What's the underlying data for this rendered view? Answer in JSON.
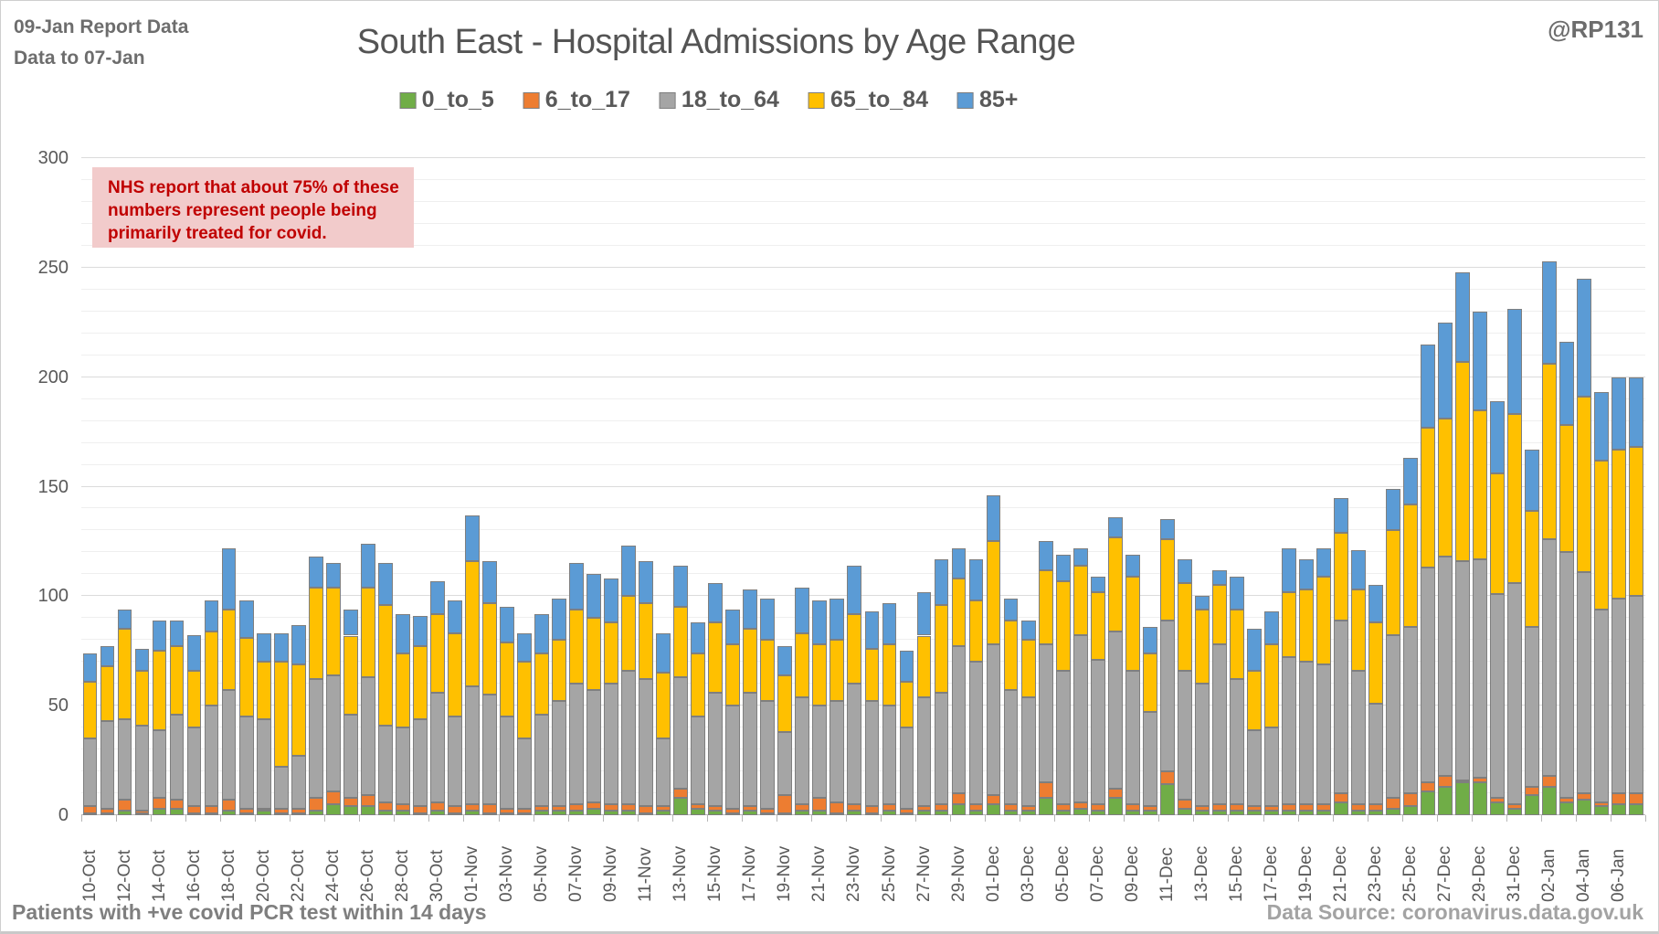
{
  "window": {
    "report_note_line1": "09-Jan Report Data",
    "report_note_line2": "Data to 07-Jan",
    "watermark": "@RP131"
  },
  "title": "South East - Hospital Admissions by Age Range",
  "annotation": {
    "text": "NHS report that about 75% of these\nnumbers represent people being\nprimarily treated for covid.",
    "bg_color": "#F2CBCB",
    "text_color": "#C00000"
  },
  "footer": {
    "left": "Patients with  +ve covid PCR test within 14 days",
    "right": "Data Source: coronavirus.data.gov.uk"
  },
  "colors": {
    "axis_text": "#595959",
    "minor_gridline": "#EFEFEF",
    "major_gridline": "#DBDBDB",
    "bar_border": "#7F7F7F"
  },
  "chart_data": {
    "type": "bar",
    "stacked": true,
    "title": "South East - Hospital Admissions by Age Range",
    "xlabel": "",
    "ylabel": "",
    "ylim": [
      0,
      300
    ],
    "ytick_step": 50,
    "minor_grid_step": 10,
    "yticks": [
      0,
      50,
      100,
      150,
      200,
      250,
      300
    ],
    "grid": "horizontal, minor every 10 (faint), major every 50",
    "legend_position": "top",
    "x_label_every": 2,
    "categories": [
      "10-Oct",
      "11-Oct",
      "12-Oct",
      "13-Oct",
      "14-Oct",
      "15-Oct",
      "16-Oct",
      "17-Oct",
      "18-Oct",
      "19-Oct",
      "20-Oct",
      "21-Oct",
      "22-Oct",
      "23-Oct",
      "24-Oct",
      "25-Oct",
      "26-Oct",
      "27-Oct",
      "28-Oct",
      "29-Oct",
      "30-Oct",
      "31-Oct",
      "01-Nov",
      "02-Nov",
      "03-Nov",
      "04-Nov",
      "05-Nov",
      "06-Nov",
      "07-Nov",
      "08-Nov",
      "09-Nov",
      "10-Nov",
      "11-Nov",
      "12-Nov",
      "13-Nov",
      "14-Nov",
      "15-Nov",
      "16-Nov",
      "17-Nov",
      "18-Nov",
      "19-Nov",
      "20-Nov",
      "21-Nov",
      "22-Nov",
      "23-Nov",
      "24-Nov",
      "25-Nov",
      "26-Nov",
      "27-Nov",
      "28-Nov",
      "29-Nov",
      "30-Nov",
      "01-Dec",
      "02-Dec",
      "03-Dec",
      "04-Dec",
      "05-Dec",
      "06-Dec",
      "07-Dec",
      "08-Dec",
      "09-Dec",
      "10-Dec",
      "11-Dec",
      "12-Dec",
      "13-Dec",
      "14-Dec",
      "15-Dec",
      "16-Dec",
      "17-Dec",
      "18-Dec",
      "19-Dec",
      "20-Dec",
      "21-Dec",
      "22-Dec",
      "23-Dec",
      "24-Dec",
      "25-Dec",
      "26-Dec",
      "27-Dec",
      "28-Dec",
      "29-Dec",
      "30-Dec",
      "31-Dec",
      "01-Jan",
      "02-Jan",
      "03-Jan",
      "04-Jan",
      "05-Jan",
      "06-Jan",
      "07-Jan"
    ],
    "series": [
      {
        "name": "0_to_5",
        "color": "#70AD47",
        "values": [
          1,
          1,
          2,
          1,
          3,
          3,
          1,
          1,
          2,
          1,
          2,
          1,
          1,
          2,
          5,
          4,
          4,
          2,
          2,
          1,
          2,
          1,
          2,
          1,
          1,
          1,
          2,
          2,
          2,
          3,
          2,
          2,
          1,
          2,
          8,
          3,
          2,
          1,
          2,
          1,
          1,
          2,
          2,
          1,
          2,
          1,
          2,
          1,
          2,
          2,
          5,
          2,
          5,
          2,
          2,
          8,
          2,
          3,
          2,
          8,
          2,
          2,
          14,
          3,
          2,
          2,
          2,
          2,
          2,
          2,
          2,
          2,
          6,
          2,
          2,
          3,
          4,
          11,
          13,
          15,
          15,
          6,
          3,
          9,
          13,
          6,
          7,
          4,
          5,
          5
        ]
      },
      {
        "name": "6_to_17",
        "color": "#ED7D31",
        "values": [
          3,
          2,
          5,
          1,
          5,
          4,
          3,
          3,
          5,
          2,
          1,
          2,
          2,
          6,
          6,
          4,
          5,
          4,
          3,
          3,
          4,
          3,
          3,
          4,
          2,
          2,
          2,
          2,
          3,
          3,
          3,
          3,
          3,
          2,
          4,
          2,
          2,
          2,
          2,
          2,
          8,
          3,
          6,
          5,
          3,
          3,
          3,
          2,
          2,
          3,
          5,
          3,
          4,
          3,
          2,
          7,
          3,
          3,
          3,
          4,
          3,
          2,
          6,
          4,
          2,
          3,
          3,
          2,
          2,
          3,
          3,
          3,
          4,
          3,
          3,
          5,
          6,
          4,
          5,
          1,
          2,
          2,
          2,
          4,
          5,
          2,
          3,
          2,
          5,
          5
        ]
      },
      {
        "name": "18_to_64",
        "color": "#A5A5A5",
        "values": [
          31,
          40,
          37,
          39,
          31,
          39,
          36,
          46,
          50,
          42,
          41,
          19,
          24,
          54,
          53,
          38,
          54,
          35,
          35,
          40,
          50,
          41,
          54,
          50,
          42,
          32,
          42,
          48,
          55,
          51,
          55,
          61,
          58,
          31,
          51,
          40,
          52,
          47,
          52,
          49,
          29,
          49,
          42,
          46,
          55,
          48,
          45,
          37,
          50,
          51,
          67,
          65,
          69,
          52,
          50,
          63,
          61,
          76,
          66,
          72,
          61,
          43,
          69,
          59,
          56,
          73,
          57,
          35,
          36,
          67,
          65,
          64,
          79,
          61,
          46,
          74,
          76,
          98,
          100,
          100,
          100,
          93,
          101,
          73,
          108,
          112,
          101,
          88,
          89,
          90
        ]
      },
      {
        "name": "65_to_84",
        "color": "#FFC000",
        "values": [
          26,
          25,
          41,
          25,
          36,
          31,
          26,
          34,
          37,
          36,
          26,
          48,
          42,
          42,
          40,
          36,
          41,
          55,
          34,
          33,
          36,
          38,
          57,
          42,
          34,
          35,
          28,
          28,
          34,
          33,
          28,
          34,
          35,
          30,
          32,
          29,
          32,
          28,
          29,
          28,
          26,
          29,
          28,
          28,
          32,
          24,
          28,
          21,
          28,
          40,
          31,
          28,
          47,
          32,
          26,
          34,
          41,
          32,
          31,
          43,
          43,
          27,
          37,
          40,
          34,
          27,
          32,
          27,
          38,
          30,
          33,
          40,
          40,
          37,
          37,
          48,
          56,
          64,
          63,
          91,
          68,
          55,
          77,
          53,
          80,
          58,
          80,
          68,
          68,
          68
        ]
      },
      {
        "name": "85+",
        "color": "#5B9BD5",
        "values": [
          13,
          9,
          9,
          10,
          14,
          12,
          16,
          14,
          28,
          17,
          13,
          13,
          18,
          14,
          11,
          12,
          20,
          19,
          18,
          14,
          15,
          15,
          21,
          19,
          16,
          13,
          18,
          19,
          21,
          20,
          20,
          23,
          19,
          18,
          19,
          14,
          18,
          16,
          18,
          19,
          13,
          21,
          20,
          19,
          22,
          17,
          19,
          14,
          20,
          21,
          14,
          19,
          21,
          10,
          9,
          13,
          12,
          8,
          7,
          9,
          10,
          12,
          9,
          11,
          6,
          7,
          15,
          19,
          15,
          20,
          14,
          13,
          16,
          18,
          17,
          19,
          21,
          38,
          44,
          41,
          45,
          33,
          48,
          28,
          47,
          38,
          54,
          31,
          33,
          32
        ]
      }
    ]
  }
}
